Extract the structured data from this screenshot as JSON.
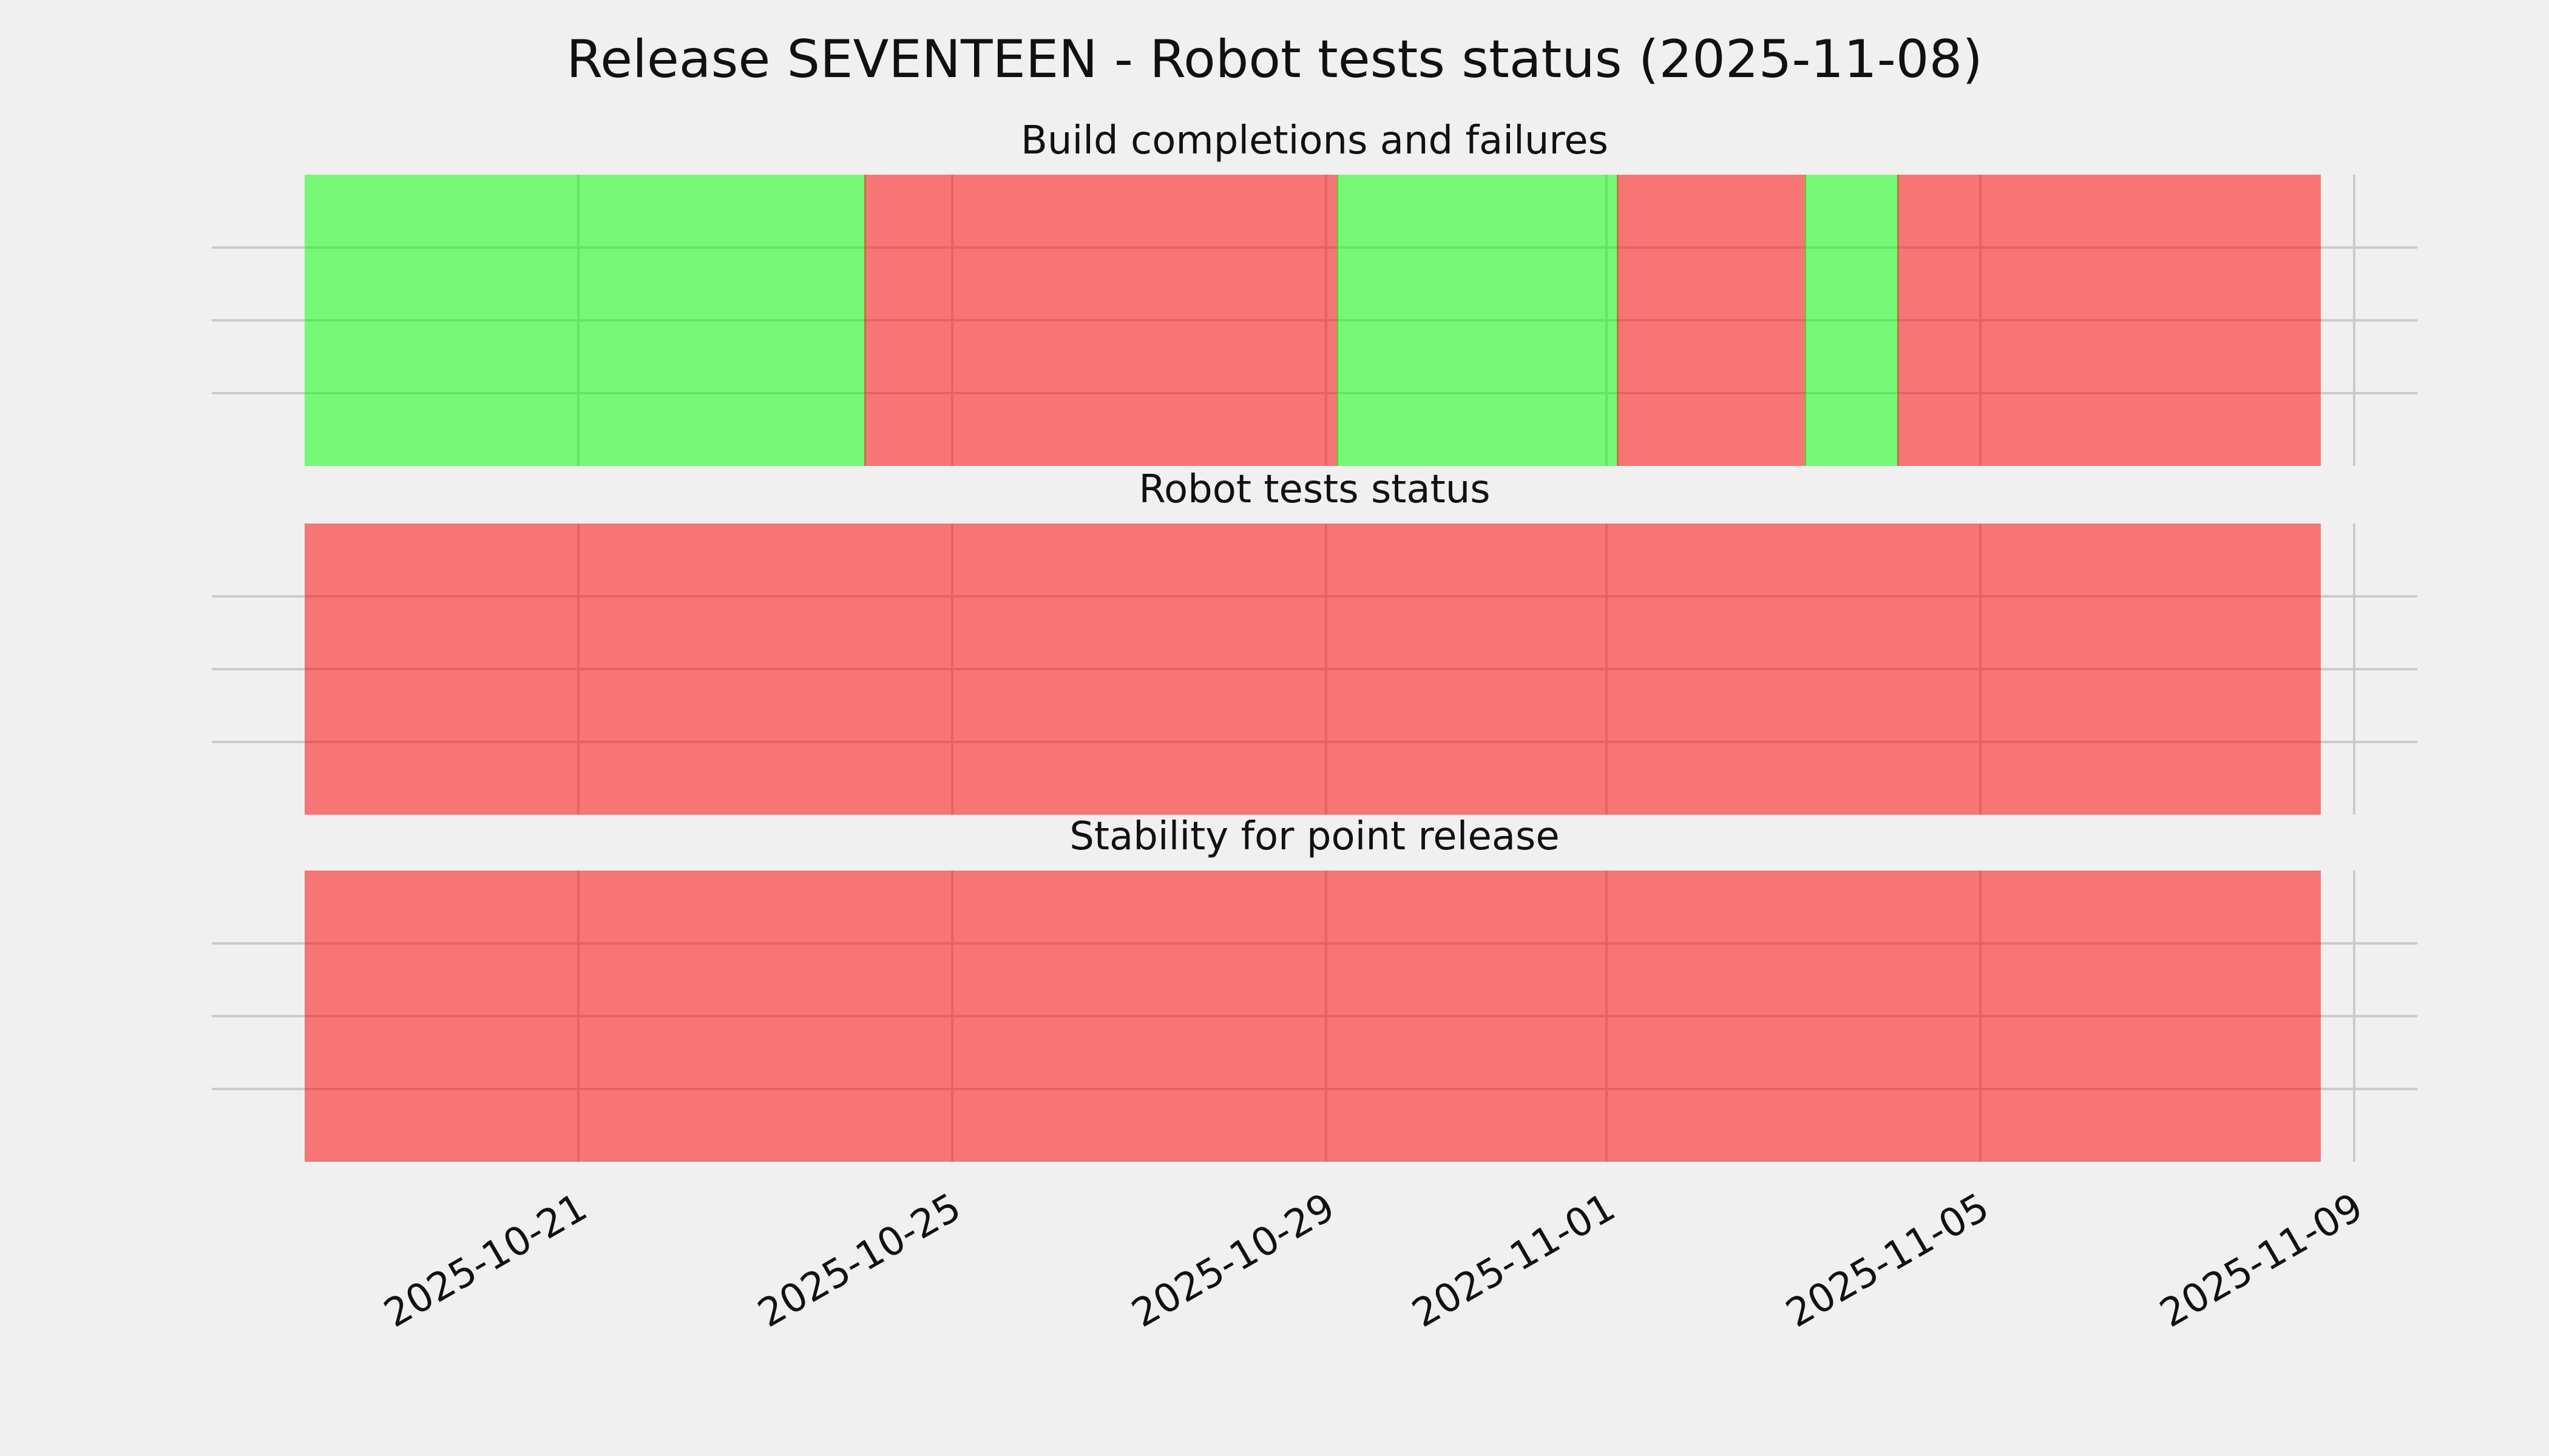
{
  "figure": {
    "title": "Release SEVENTEEN - Robot tests status (2025-11-08)",
    "background_color": "#f0f0f0",
    "gridline_color": "#cbcbcb",
    "text_color": "#111111"
  },
  "chart_data": {
    "type": "area",
    "variant": "status-timeline (colored time spans, matplotlib axvspan style)",
    "grid": "on",
    "legend": "none",
    "status_colors": {
      "success": "rgba(0,255,0,0.515)",
      "failure": "rgba(255,0,0,0.515)",
      "success_flat_hex": "#75f275",
      "failure_flat_hex": "#f27575"
    },
    "x_axis": {
      "start": "2025-10-18 02:00",
      "end": "2025-11-08 15:00",
      "tick_labels": [
        "2025-10-21",
        "2025-10-25",
        "2025-10-29",
        "2025-11-01",
        "2025-11-05",
        "2025-11-09"
      ],
      "tick_positions_pct": [
        16.6208,
        33.5718,
        50.5228,
        63.2361,
        80.1871,
        97.1381
      ],
      "tick_rotation_deg": 30
    },
    "y_axis": {
      "tick_labels": [],
      "h_gridlines_pct": [
        25,
        50,
        75
      ]
    },
    "subplots": [
      {
        "title": "Build completions and failures",
        "segments": [
          {
            "status": "success",
            "start": "2025-10-18 02:00",
            "end": "2025-10-24 02:00",
            "x0_pct": 4.2103,
            "x1_pct": 29.6643
          },
          {
            "status": "failure",
            "start": "2025-10-24 02:00",
            "end": "2025-10-29 03:00",
            "x0_pct": 29.6643,
            "x1_pct": 51.0732
          },
          {
            "status": "success",
            "start": "2025-10-29 03:00",
            "end": "2025-11-01 03:00",
            "x0_pct": 51.0732,
            "x1_pct": 63.7864
          },
          {
            "status": "failure",
            "start": "2025-11-01 03:00",
            "end": "2025-11-03 03:00",
            "x0_pct": 63.7864,
            "x1_pct": 72.2896
          },
          {
            "status": "success",
            "start": "2025-11-03 03:00",
            "end": "2025-11-04 03:00",
            "x0_pct": 72.2896,
            "x1_pct": 76.5002
          },
          {
            "status": "failure",
            "start": "2025-11-04 03:00",
            "end": "2025-11-08 15:00",
            "x0_pct": 76.5002,
            "x1_pct": 95.6246
          }
        ]
      },
      {
        "title": "Robot tests status",
        "segments": [
          {
            "status": "failure",
            "start": "2025-10-18 02:00",
            "end": "2025-11-08 15:00",
            "x0_pct": 4.2103,
            "x1_pct": 95.6246
          }
        ]
      },
      {
        "title": "Stability for point release",
        "segments": [
          {
            "status": "failure",
            "start": "2025-10-18 02:00",
            "end": "2025-11-08 15:00",
            "x0_pct": 4.2103,
            "x1_pct": 95.6246
          }
        ]
      }
    ]
  }
}
